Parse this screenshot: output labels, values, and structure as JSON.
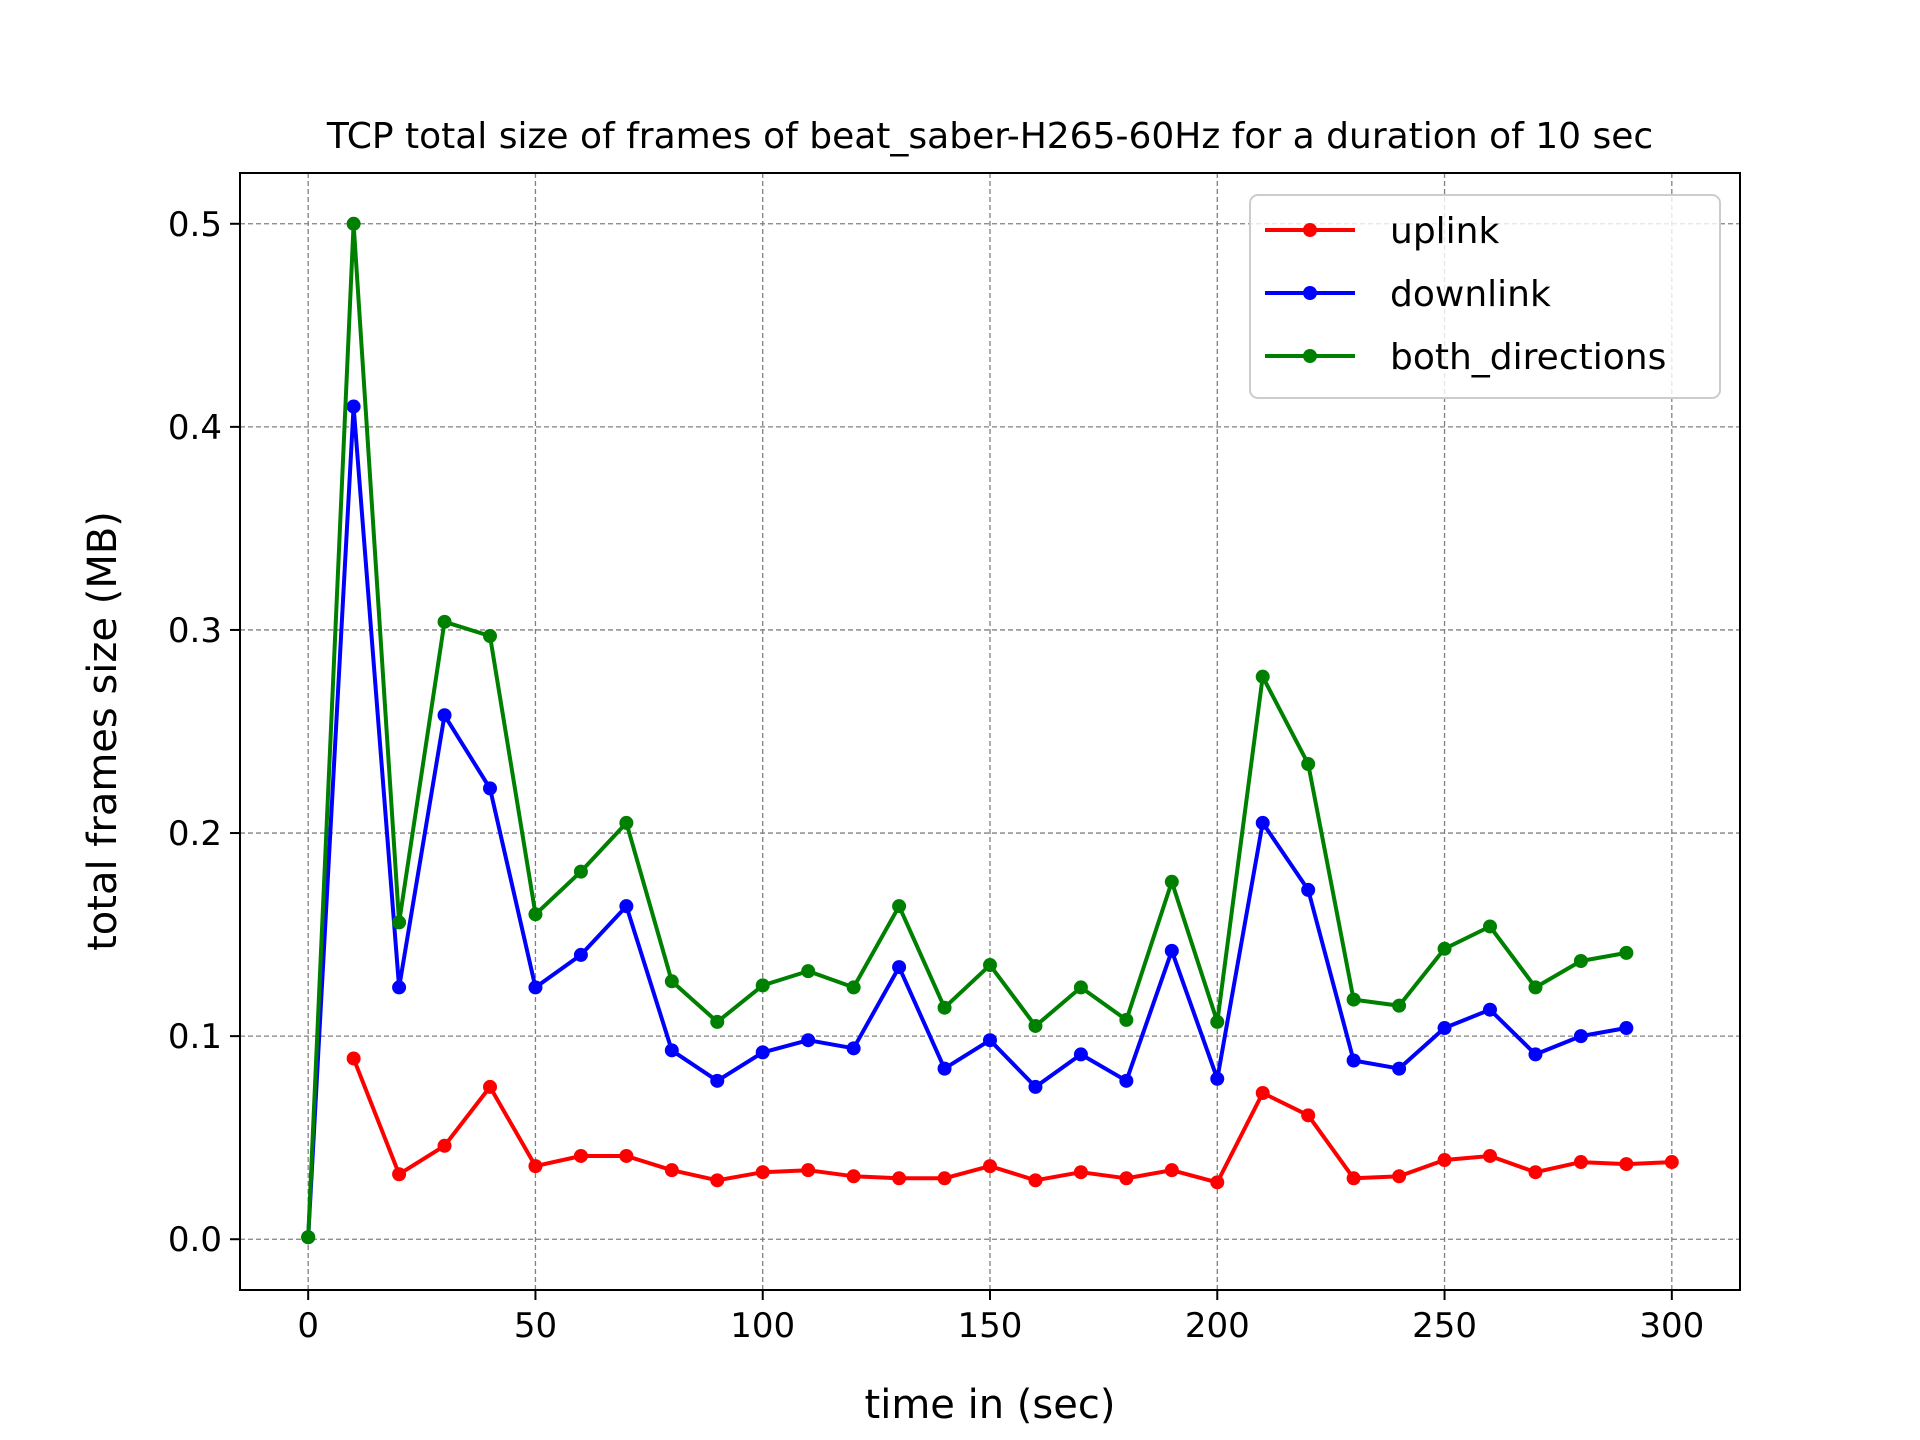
{
  "chart_data": {
    "type": "line",
    "title": "TCP total size of frames of beat_saber-H265-60Hz for a duration of 10 sec",
    "xlabel": "time in (sec)",
    "ylabel": "total frames size (MB)",
    "xlim": [
      -15,
      315
    ],
    "ylim": [
      -0.025,
      0.525
    ],
    "xticks": [
      0,
      50,
      100,
      150,
      200,
      250,
      300
    ],
    "xtick_labels": [
      "0",
      "50",
      "100",
      "150",
      "200",
      "250",
      "300"
    ],
    "yticks": [
      0.0,
      0.1,
      0.2,
      0.3,
      0.4,
      0.5
    ],
    "ytick_labels": [
      "0.0",
      "0.1",
      "0.2",
      "0.3",
      "0.4",
      "0.5"
    ],
    "grid": true,
    "legend_position": "top-right",
    "series": [
      {
        "name": "uplink",
        "color": "#ff0000",
        "x": [
          10,
          20,
          30,
          40,
          50,
          60,
          70,
          80,
          90,
          100,
          110,
          120,
          130,
          140,
          150,
          160,
          170,
          180,
          190,
          200,
          210,
          220,
          230,
          240,
          250,
          260,
          270,
          280,
          290,
          300
        ],
        "y": [
          0.089,
          0.032,
          0.046,
          0.075,
          0.036,
          0.041,
          0.041,
          0.034,
          0.029,
          0.033,
          0.034,
          0.031,
          0.03,
          0.03,
          0.036,
          0.029,
          0.033,
          0.03,
          0.034,
          0.028,
          0.072,
          0.061,
          0.03,
          0.031,
          0.039,
          0.041,
          0.033,
          0.038,
          0.037,
          0.038
        ]
      },
      {
        "name": "downlink",
        "color": "#0000ff",
        "x": [
          0,
          10,
          20,
          30,
          40,
          50,
          60,
          70,
          80,
          90,
          100,
          110,
          120,
          130,
          140,
          150,
          160,
          170,
          180,
          190,
          200,
          210,
          220,
          230,
          240,
          250,
          260,
          270,
          280,
          290
        ],
        "y": [
          0.001,
          0.41,
          0.124,
          0.258,
          0.222,
          0.124,
          0.14,
          0.164,
          0.093,
          0.078,
          0.092,
          0.098,
          0.094,
          0.134,
          0.084,
          0.098,
          0.075,
          0.091,
          0.078,
          0.142,
          0.079,
          0.205,
          0.172,
          0.088,
          0.084,
          0.104,
          0.113,
          0.091,
          0.1,
          0.104
        ]
      },
      {
        "name": "both_directions",
        "color": "#008000",
        "x": [
          0,
          10,
          20,
          30,
          40,
          50,
          60,
          70,
          80,
          90,
          100,
          110,
          120,
          130,
          140,
          150,
          160,
          170,
          180,
          190,
          200,
          210,
          220,
          230,
          240,
          250,
          260,
          270,
          280,
          290
        ],
        "y": [
          0.001,
          0.5,
          0.156,
          0.304,
          0.297,
          0.16,
          0.181,
          0.205,
          0.127,
          0.107,
          0.125,
          0.132,
          0.124,
          0.164,
          0.114,
          0.135,
          0.105,
          0.124,
          0.108,
          0.176,
          0.107,
          0.277,
          0.234,
          0.118,
          0.115,
          0.143,
          0.154,
          0.124,
          0.137,
          0.141
        ]
      }
    ]
  }
}
